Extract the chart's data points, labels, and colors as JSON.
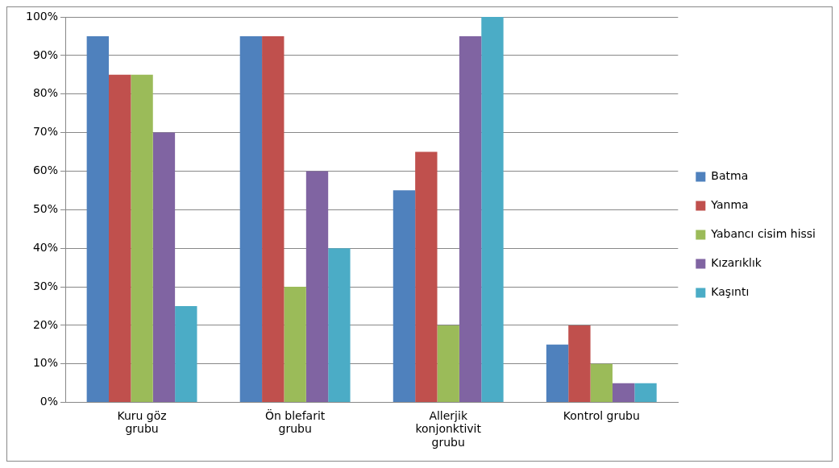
{
  "chart_data": {
    "type": "bar",
    "categories": [
      "Kuru göz grubu",
      "Ön blefarit grubu",
      "Allerjik konjonktivit grubu",
      "Kontrol grubu"
    ],
    "series": [
      {
        "name": "Batma",
        "color": "#4f81bd",
        "values": [
          95,
          95,
          55,
          15
        ]
      },
      {
        "name": "Yanma",
        "color": "#c0504d",
        "values": [
          85,
          95,
          65,
          20
        ]
      },
      {
        "name": "Yabancı cisim hissi",
        "color": "#9bbb59",
        "values": [
          85,
          30,
          20,
          10
        ]
      },
      {
        "name": "Kızarıklık",
        "color": "#8064a2",
        "values": [
          70,
          60,
          95,
          5
        ]
      },
      {
        "name": "Kaşıntı",
        "color": "#4bacc6",
        "values": [
          25,
          40,
          100,
          5
        ]
      }
    ],
    "ylim": [
      0,
      100
    ],
    "yticks": [
      {
        "value": 0,
        "label": "0%"
      },
      {
        "value": 10,
        "label": "10%"
      },
      {
        "value": 20,
        "label": "20%"
      },
      {
        "value": 30,
        "label": "30%"
      },
      {
        "value": 40,
        "label": "40%"
      },
      {
        "value": 50,
        "label": "50%"
      },
      {
        "value": 60,
        "label": "60%"
      },
      {
        "value": 70,
        "label": "70%"
      },
      {
        "value": 80,
        "label": "80%"
      },
      {
        "value": 90,
        "label": "90%"
      },
      {
        "value": 100,
        "label": "100%"
      }
    ],
    "grid": "y",
    "legend": "right"
  }
}
